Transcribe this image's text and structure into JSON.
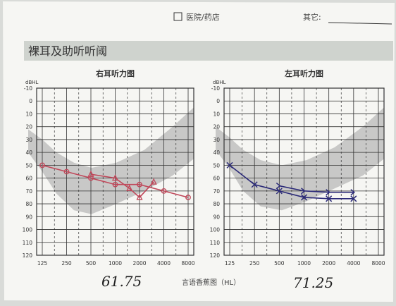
{
  "header": {
    "checkbox_label": "医院/药店",
    "other_label": "其它:"
  },
  "section_title": "裸耳及助听听阈",
  "footer_label": "言语香蕉图（HL）",
  "handwritten": {
    "left_value": "61.75",
    "right_value": "71.25"
  },
  "colors": {
    "right_ear": "#c0485a",
    "left_ear": "#2b2a78",
    "banana": "#b8b8b8",
    "grid": "#333333",
    "title_band": "#cfd3ce"
  },
  "chart_data": [
    {
      "type": "line",
      "title": "右耳听力图",
      "ylabel": "dBHL",
      "x_scale": "log2",
      "x_ticks": [
        125,
        250,
        500,
        1000,
        2000,
        4000,
        8000
      ],
      "y_ticks": [
        -10,
        0,
        10,
        20,
        30,
        40,
        50,
        60,
        70,
        80,
        90,
        100,
        110,
        120
      ],
      "ylim": [
        -10,
        120
      ],
      "y_inverted": true,
      "grid": true,
      "series": [
        {
          "marker": "circle",
          "x": [
            125,
            250,
            500,
            1000,
            2000,
            4000,
            8000
          ],
          "y": [
            50,
            55,
            60,
            65,
            65,
            70,
            75
          ]
        },
        {
          "marker": "triangle",
          "x": [
            500,
            1000,
            1500,
            2000,
            3000
          ],
          "y": [
            57,
            60,
            68,
            75,
            63
          ]
        }
      ]
    },
    {
      "type": "line",
      "title": "左耳听力图",
      "ylabel": "dBHL",
      "x_scale": "log2",
      "x_ticks": [
        125,
        250,
        500,
        1000,
        2000,
        4000,
        8000
      ],
      "y_ticks": [
        -10,
        0,
        10,
        20,
        30,
        40,
        50,
        60,
        70,
        80,
        90,
        100,
        110,
        120
      ],
      "ylim": [
        -10,
        120
      ],
      "y_inverted": true,
      "grid": true,
      "series": [
        {
          "marker": "cross",
          "x": [
            125,
            250,
            500,
            1000,
            2000,
            4000
          ],
          "y": [
            50,
            65,
            70,
            75,
            76,
            76
          ]
        },
        {
          "marker": "arrow",
          "x": [
            500,
            1000,
            2000,
            4000
          ],
          "y": [
            66,
            70,
            71,
            71
          ]
        }
      ]
    }
  ]
}
